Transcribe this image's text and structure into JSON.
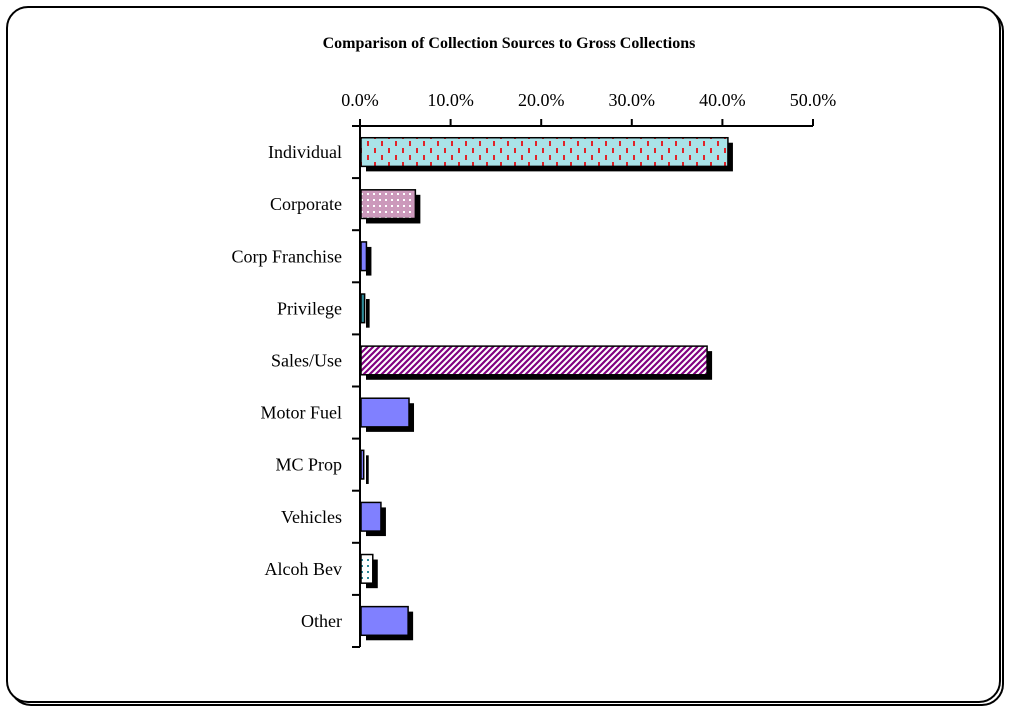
{
  "chart_data": {
    "type": "bar",
    "orientation": "horizontal",
    "title": "Comparison of Collection Sources to Gross Collections",
    "xlabel": "",
    "ylabel": "",
    "xlim": [
      0,
      50
    ],
    "x_ticks": [
      "0.0%",
      "10.0%",
      "20.0%",
      "30.0%",
      "40.0%",
      "50.0%"
    ],
    "x_axis_position": "top",
    "grid": false,
    "legend": "none",
    "categories": [
      "Individual",
      "Corporate",
      "Corp Franchise",
      "Privilege",
      "Sales/Use",
      "Motor Fuel",
      "MC Prop",
      "Vehicles",
      "Alcoh Bev",
      "Other"
    ],
    "values": [
      40.5,
      6.0,
      0.6,
      0.4,
      38.2,
      5.3,
      0.3,
      2.2,
      1.3,
      5.2
    ],
    "unit": "%",
    "bar_styles": [
      {
        "fill": "#a9e3e8",
        "pattern": "dash",
        "pattern_color": "#e0242a"
      },
      {
        "fill": "#cc99bb",
        "pattern": "dots",
        "pattern_color": "#ffffff"
      },
      {
        "fill": "#8080ff",
        "pattern": "solid",
        "pattern_color": ""
      },
      {
        "fill": "#2e8b9a",
        "pattern": "solid",
        "pattern_color": ""
      },
      {
        "fill": "#ffffff",
        "pattern": "diagonal",
        "pattern_color": "#800080"
      },
      {
        "fill": "#8080ff",
        "pattern": "solid",
        "pattern_color": ""
      },
      {
        "fill": "#8080ff",
        "pattern": "solid",
        "pattern_color": ""
      },
      {
        "fill": "#8080ff",
        "pattern": "solid",
        "pattern_color": ""
      },
      {
        "fill": "#ffffff",
        "pattern": "dots",
        "pattern_color": "#2e8b9a"
      },
      {
        "fill": "#8080ff",
        "pattern": "solid",
        "pattern_color": ""
      }
    ],
    "shadow_color": "#000000"
  }
}
